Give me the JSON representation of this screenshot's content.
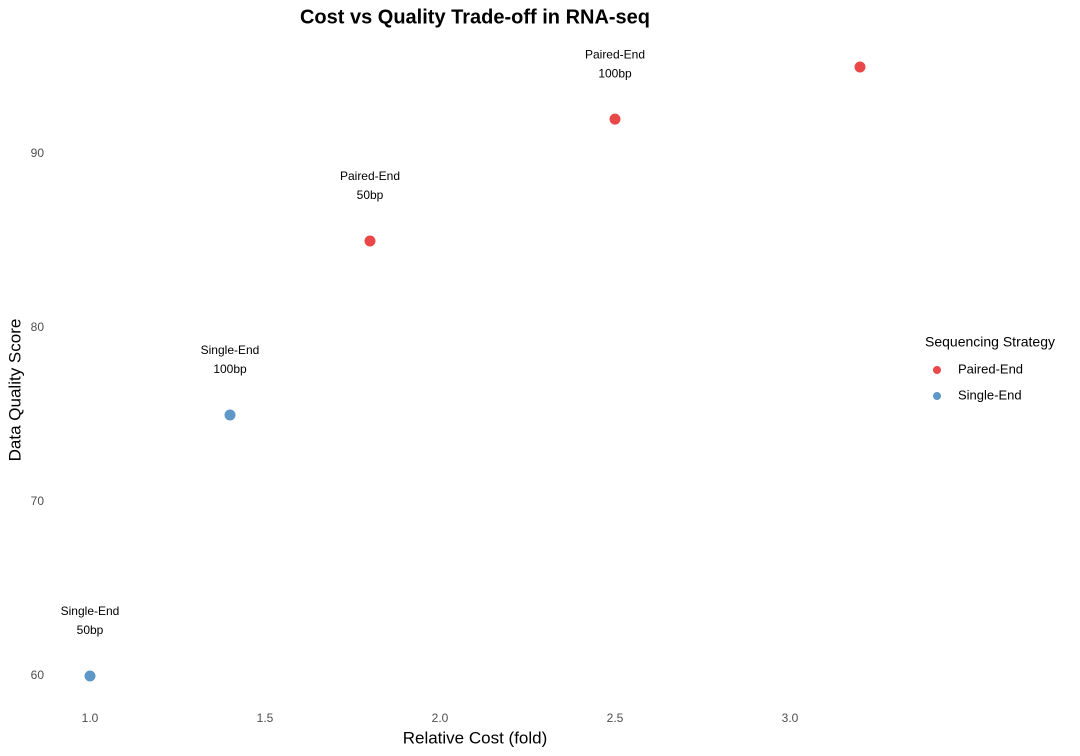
{
  "chart_data": {
    "type": "scatter",
    "title": "Cost vs Quality Trade-off in RNA-seq",
    "x_label": "Relative Cost (fold)",
    "y_label": "Data Quality Score",
    "legend_title": "Sequencing Strategy",
    "legend_position": "right",
    "grid": false,
    "xlim": [
      0.89,
      3.31
    ],
    "ylim": [
      58.25,
      96.75
    ],
    "xticks": [
      {
        "value": 1,
        "label": "1.0"
      },
      1.5,
      {
        "value": 2,
        "label": "2.0"
      },
      2.5,
      {
        "value": 3,
        "label": "3.0"
      }
    ],
    "yticks": [
      60,
      70,
      80,
      90
    ],
    "series": [
      {
        "name": "Paired-End",
        "color": "#E41A1C",
        "x": [
          1.8,
          2.5,
          3.2
        ],
        "values": [
          85,
          92,
          95
        ],
        "point_labels": [
          [
            "Paired-End",
            "50bp"
          ],
          [
            "Paired-End",
            "100bp"
          ],
          null
        ]
      },
      {
        "name": "Single-End",
        "color": "#377EB8",
        "x": [
          1.0,
          1.4
        ],
        "values": [
          60,
          75
        ],
        "point_labels": [
          [
            "Single-End",
            "50bp"
          ],
          [
            "Single-End",
            "100bp"
          ]
        ]
      }
    ]
  }
}
